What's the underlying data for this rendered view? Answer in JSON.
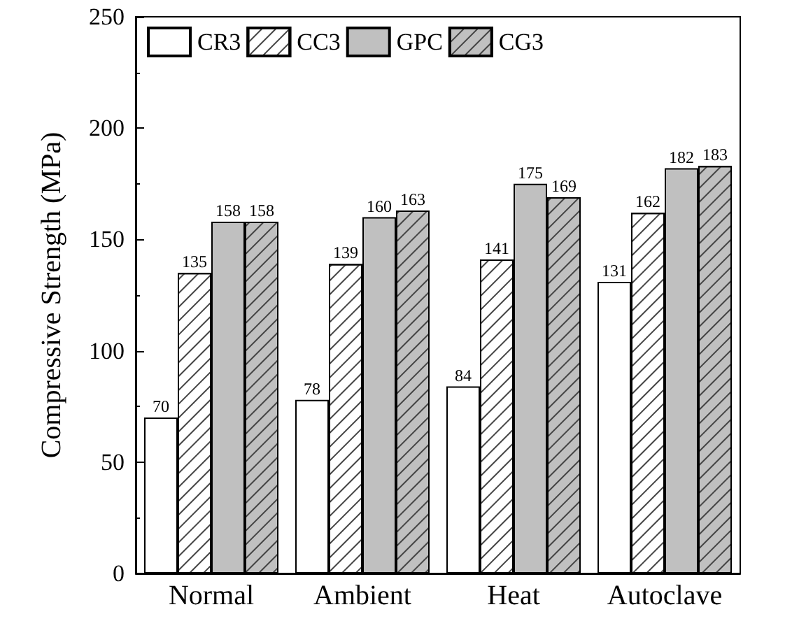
{
  "chart_data": {
    "type": "bar",
    "ylabel": "Compressive Strength (MPa)",
    "categories": [
      "Normal",
      "Ambient",
      "Heat",
      "Autoclave"
    ],
    "series": [
      {
        "name": "CR3",
        "color": "#ffffff",
        "values": [
          70,
          78,
          84,
          131
        ]
      },
      {
        "name": "CC3",
        "color": "#ffffff",
        "values": [
          135,
          139,
          141,
          162
        ]
      },
      {
        "name": "GPC",
        "color": "#c0c0c0",
        "values": [
          158,
          160,
          175,
          182
        ]
      },
      {
        "name": "CG3",
        "color": "#c0c0c0",
        "values": [
          158,
          163,
          169,
          183
        ]
      }
    ],
    "ylim": [
      0,
      250
    ],
    "yticks": [
      0,
      50,
      100,
      150,
      200,
      250
    ],
    "grid": false,
    "legend": "top left",
    "data_labels": true
  }
}
